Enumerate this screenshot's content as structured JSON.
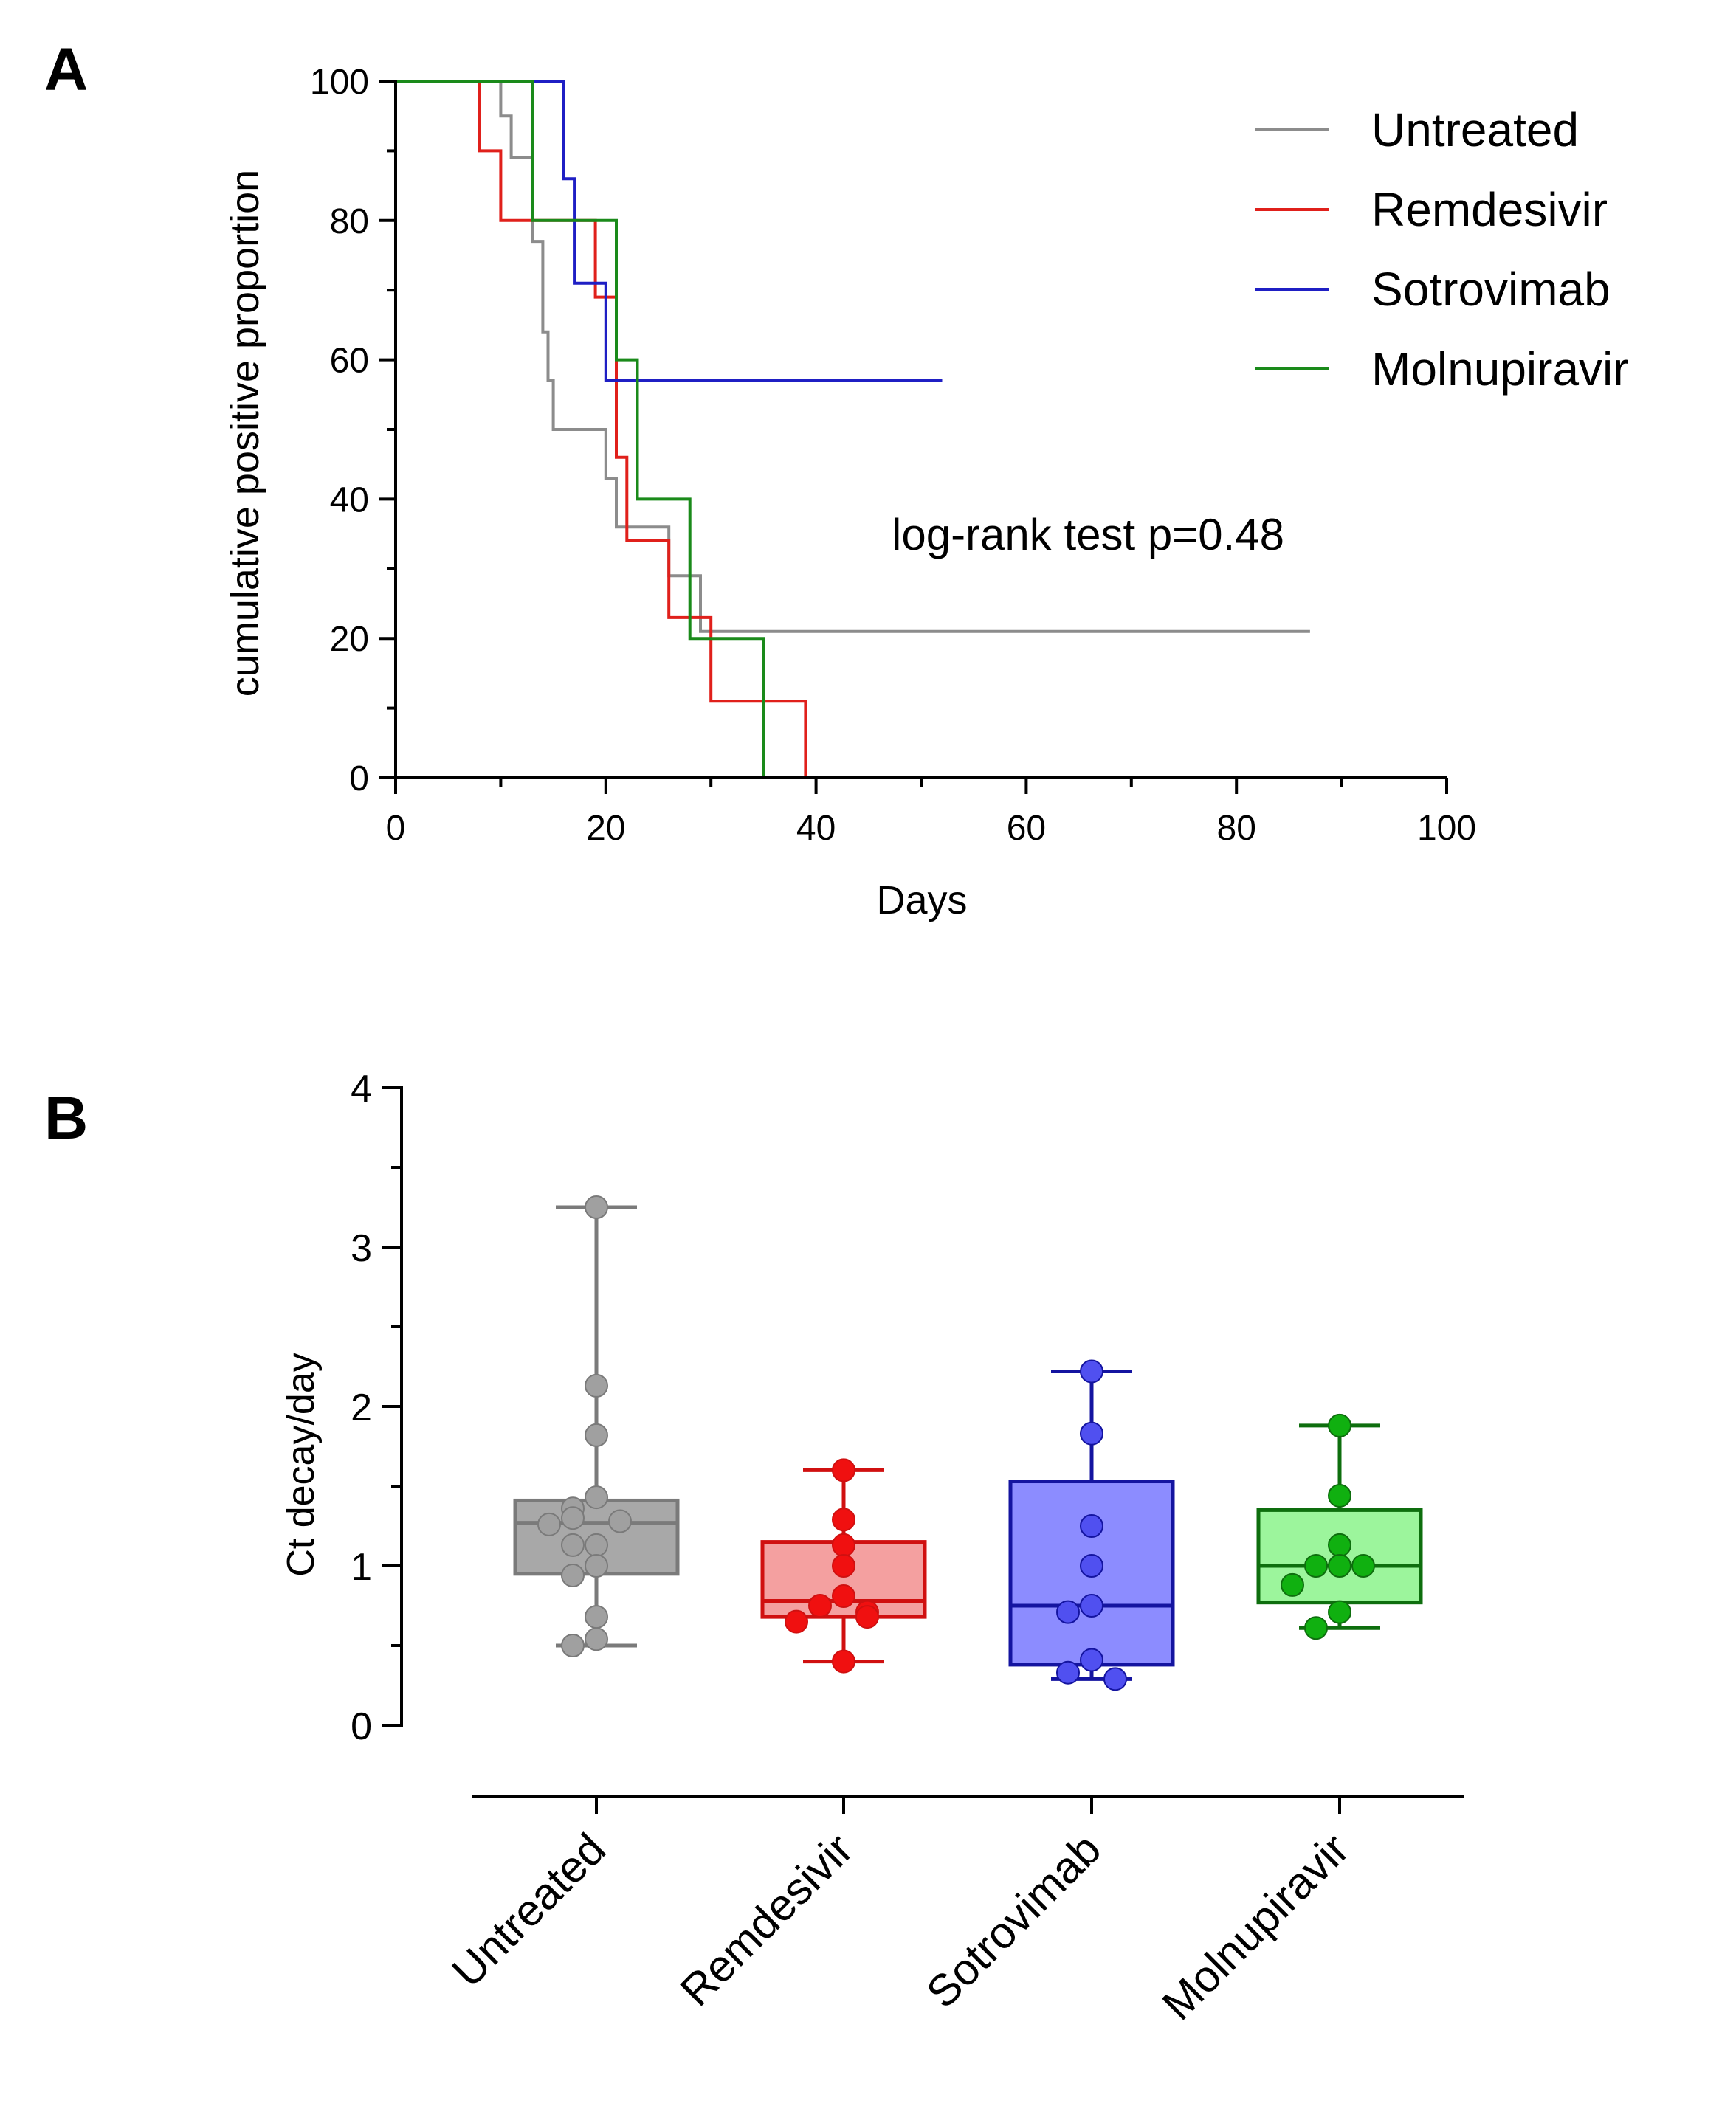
{
  "chart_data": [
    {
      "panel": "A",
      "type": "line",
      "subtype": "kaplan-meier step",
      "xlabel": "Days",
      "ylabel": "cumulative positive proportion",
      "xlim": [
        0,
        100
      ],
      "ylim": [
        0,
        100
      ],
      "xticks": [
        0,
        20,
        40,
        60,
        80,
        100
      ],
      "yticks": [
        0,
        20,
        40,
        60,
        80,
        100
      ],
      "annotation": "log-rank test p=0.48",
      "legend_position": "top-right",
      "series": [
        {
          "name": "Untreated",
          "color": "#8c8c8c",
          "steps": [
            [
              0,
              100
            ],
            [
              10,
              100
            ],
            [
              10,
              95
            ],
            [
              11,
              95
            ],
            [
              11,
              89
            ],
            [
              13,
              89
            ],
            [
              13,
              77
            ],
            [
              14,
              77
            ],
            [
              14,
              64
            ],
            [
              14.5,
              64
            ],
            [
              14.5,
              57
            ],
            [
              15,
              57
            ],
            [
              15,
              50
            ],
            [
              20,
              50
            ],
            [
              20,
              43
            ],
            [
              21,
              43
            ],
            [
              21,
              36
            ],
            [
              26,
              36
            ],
            [
              26,
              29
            ],
            [
              29,
              29
            ],
            [
              29,
              21
            ],
            [
              87,
              21
            ]
          ]
        },
        {
          "name": "Remdesivir",
          "color": "#e0201b",
          "steps": [
            [
              0,
              100
            ],
            [
              8,
              100
            ],
            [
              8,
              90
            ],
            [
              10,
              90
            ],
            [
              10,
              80
            ],
            [
              19,
              80
            ],
            [
              19,
              69
            ],
            [
              21,
              69
            ],
            [
              21,
              46
            ],
            [
              22,
              46
            ],
            [
              22,
              34
            ],
            [
              26,
              34
            ],
            [
              26,
              23
            ],
            [
              30,
              23
            ],
            [
              30,
              11
            ],
            [
              39,
              11
            ],
            [
              39,
              0
            ]
          ]
        },
        {
          "name": "Sotrovimab",
          "color": "#1f1fc4",
          "steps": [
            [
              0,
              100
            ],
            [
              16,
              100
            ],
            [
              16,
              86
            ],
            [
              17,
              86
            ],
            [
              17,
              71
            ],
            [
              20,
              71
            ],
            [
              20,
              57
            ],
            [
              52,
              57
            ]
          ]
        },
        {
          "name": "Molnupiravir",
          "color": "#1a8a1a",
          "steps": [
            [
              0,
              100
            ],
            [
              13,
              100
            ],
            [
              13,
              80
            ],
            [
              21,
              80
            ],
            [
              21,
              60
            ],
            [
              23,
              60
            ],
            [
              23,
              40
            ],
            [
              28,
              40
            ],
            [
              28,
              20
            ],
            [
              35,
              20
            ],
            [
              35,
              0
            ]
          ]
        }
      ]
    },
    {
      "panel": "B",
      "type": "box",
      "ylabel": "Ct decay/day",
      "ylim": [
        0,
        4
      ],
      "yticks": [
        0,
        1,
        2,
        3,
        4
      ],
      "categories": [
        "Untreated",
        "Remdesivir",
        "Sotrovimab",
        "Molnupiravir"
      ],
      "groups": [
        {
          "name": "Untreated",
          "line_color": "#7a7a7a",
          "fill_color": "#a8a8a8",
          "point_color": "#a0a0a0",
          "min": 0.5,
          "q1": 0.95,
          "median": 1.27,
          "q3": 1.41,
          "max": 3.25,
          "points": [
            3.25,
            2.13,
            1.82,
            1.43,
            1.36,
            1.3,
            1.28,
            1.26,
            1.13,
            1.13,
            1.0,
            0.94,
            0.68,
            0.54,
            0.5
          ]
        },
        {
          "name": "Remdesivir",
          "line_color": "#d01010",
          "fill_color": "#f4a0a0",
          "point_color": "#f01010",
          "min": 0.4,
          "q1": 0.68,
          "median": 0.78,
          "q3": 1.15,
          "max": 1.6,
          "points": [
            1.6,
            1.29,
            1.13,
            1.0,
            0.81,
            0.75,
            0.71,
            0.68,
            0.65,
            0.4
          ]
        },
        {
          "name": "Sotrovimab",
          "line_color": "#1414a0",
          "fill_color": "#8c8cff",
          "point_color": "#5050f0",
          "min": 0.29,
          "q1": 0.38,
          "median": 0.75,
          "q3": 1.53,
          "max": 2.22,
          "points": [
            2.22,
            1.83,
            1.25,
            1.0,
            0.75,
            0.71,
            0.41,
            0.33,
            0.29
          ]
        },
        {
          "name": "Molnupiravir",
          "line_color": "#0e6e0e",
          "fill_color": "#9cf59c",
          "point_color": "#10b010",
          "min": 0.61,
          "q1": 0.77,
          "median": 1.0,
          "q3": 1.35,
          "max": 1.88,
          "points": [
            1.88,
            1.44,
            1.13,
            1.0,
            1.0,
            1.0,
            0.88,
            0.71,
            0.61
          ]
        }
      ]
    }
  ],
  "panels": {
    "a_label": "A",
    "b_label": "B"
  }
}
